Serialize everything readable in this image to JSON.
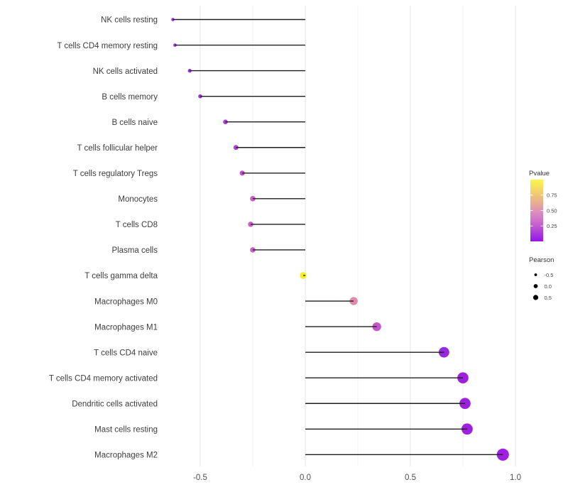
{
  "chart_data": {
    "type": "lollipop",
    "title": "",
    "xlabel": "",
    "ylabel": "",
    "orientation": "horizontal",
    "grid": "vertical-only",
    "legend_position": "right",
    "points": [
      {
        "label": "NK cells resting",
        "pearson": -0.63,
        "color": "#9a2be0"
      },
      {
        "label": "T cells CD4 memory resting",
        "pearson": -0.62,
        "color": "#9a2be0"
      },
      {
        "label": "NK cells activated",
        "pearson": -0.55,
        "color": "#9831de"
      },
      {
        "label": "B cells memory",
        "pearson": -0.5,
        "color": "#9d32db"
      },
      {
        "label": "B cells naive",
        "pearson": -0.38,
        "color": "#aa3ad8"
      },
      {
        "label": "T cells follicular helper",
        "pearson": -0.33,
        "color": "#b243d3"
      },
      {
        "label": "T cells regulatory  Tregs",
        "pearson": -0.3,
        "color": "#c250cd"
      },
      {
        "label": "Monocytes",
        "pearson": -0.25,
        "color": "#cc5ec7"
      },
      {
        "label": "T cells CD8",
        "pearson": -0.26,
        "color": "#cb5cc8"
      },
      {
        "label": "Plasma cells",
        "pearson": -0.25,
        "color": "#cc5ec7"
      },
      {
        "label": "T cells gamma delta",
        "pearson": -0.01,
        "color": "#f2ee20"
      },
      {
        "label": "Macrophages M0",
        "pearson": 0.23,
        "color": "#e18aae"
      },
      {
        "label": "Macrophages M1",
        "pearson": 0.34,
        "color": "#c653c9"
      },
      {
        "label": "T cells CD4 naive",
        "pearson": 0.66,
        "color": "#962ae0"
      },
      {
        "label": "T cells CD4 memory activated",
        "pearson": 0.75,
        "color": "#9c20dc"
      },
      {
        "label": "Dendritic cells activated",
        "pearson": 0.76,
        "color": "#9c20dc"
      },
      {
        "label": "Mast cells resting",
        "pearson": 0.77,
        "color": "#9c20dc"
      },
      {
        "label": "Macrophages M2",
        "pearson": 0.94,
        "color": "#a01fe0"
      }
    ],
    "x_axis": {
      "ticks": [
        -0.5,
        0.0,
        0.5,
        1.0
      ],
      "tick_labels": [
        "-0.5",
        "0.0",
        "0.5",
        "1.0"
      ],
      "minor_ticks": [
        -0.25,
        0.25,
        0.75
      ],
      "range": [
        -0.66,
        1.07
      ],
      "baseline": 0.0
    },
    "legend_pvalue": {
      "title": "Pvalue",
      "tick_labels": [
        "0.75",
        "0.50",
        "0.25"
      ],
      "gradient_top_to_bottom": [
        "#fcf649",
        "#f2d06e",
        "#e8ab92",
        "#dd8fbc",
        "#cc6cc9",
        "#b242d8",
        "#9315e9"
      ]
    },
    "legend_pearson": {
      "title": "Pearson",
      "items": [
        {
          "label": "-0.5"
        },
        {
          "label": "0.0"
        },
        {
          "label": "0.5"
        }
      ]
    }
  }
}
